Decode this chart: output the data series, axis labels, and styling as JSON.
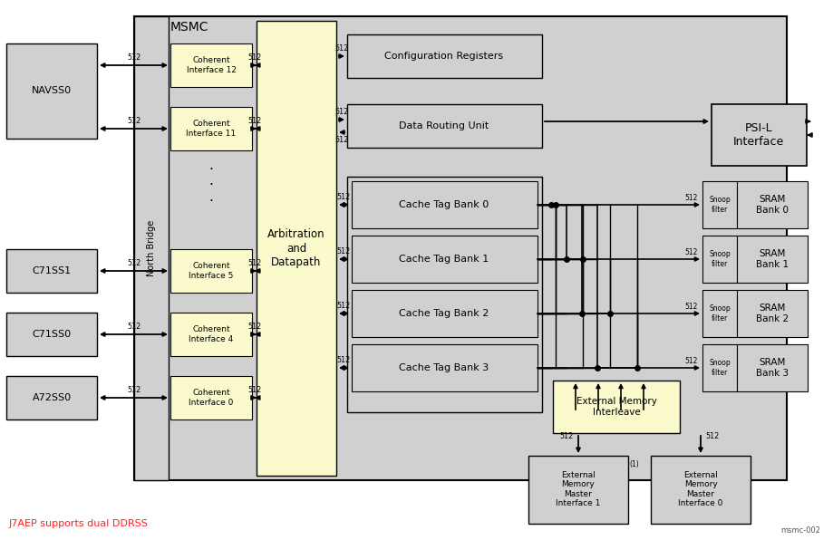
{
  "bg_color": "#ffffff",
  "note_text": "J7AEP supports dual DDRSS",
  "watermark": "msmc-002",
  "msmc_label": "MSMC",
  "arb_label": "Arbitration\nand\nDatapath",
  "nb_label": "North Bridge",
  "cfg_label": "Configuration Registers",
  "dru_label": "Data Routing Unit",
  "psil_label": "PSI-L\nInterface",
  "emi_label": "External Memory\nInterleave",
  "cache_banks": [
    "Cache Tag Bank 0",
    "Cache Tag Bank 1",
    "Cache Tag Bank 2",
    "Cache Tag Bank 3"
  ],
  "sram_banks": [
    "SRAM\nBank 0",
    "SRAM\nBank 1",
    "SRAM\nBank 2",
    "SRAM\nBank 3"
  ],
  "left_blocks": [
    "NAVSS0",
    "C71SS1",
    "C71SS0",
    "A72SS0"
  ],
  "ci_labels": [
    "Coherent\nInterface 12",
    "Coherent\nInterface 11",
    "Coherent\nInterface 5",
    "Coherent\nInterface 4",
    "Coherent\nInterface 0"
  ],
  "emm_labels": [
    "External\nMemory\nMaster\nInterface 1",
    "External\nMemory\nMaster\nInterface 0"
  ],
  "gray": "#d0d0d0",
  "yellow": "#fafacc",
  "dark_gray": "#a0a0a0",
  "arrow_color": "#000000",
  "text_color": "#000000",
  "red_color": "#ff2020"
}
